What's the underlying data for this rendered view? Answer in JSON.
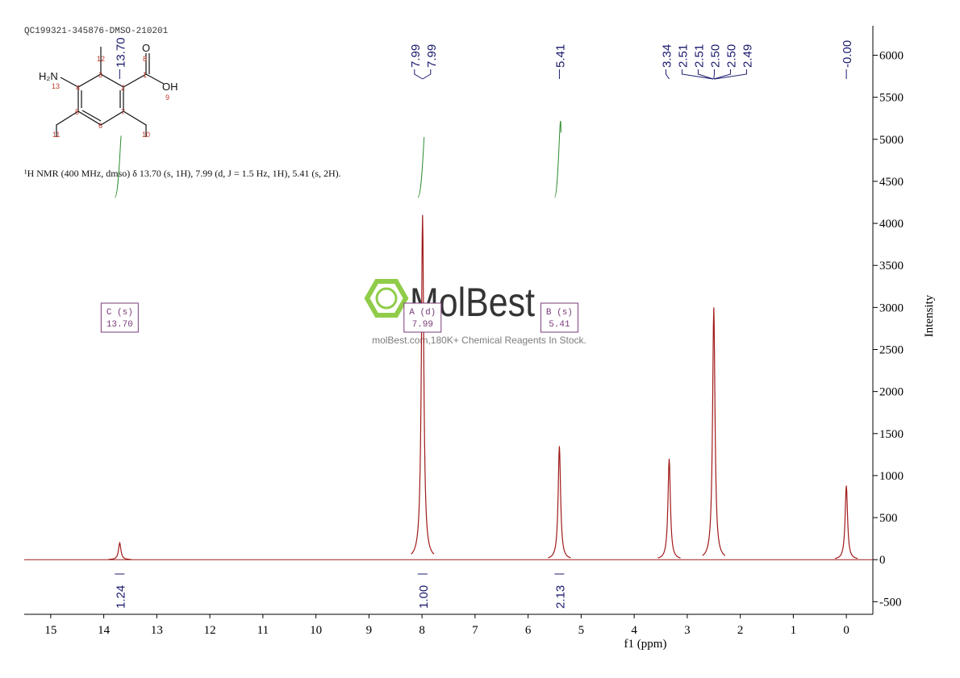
{
  "chart_data": {
    "type": "nmr",
    "sample_id": "QC199321-345876-DMSO-210201",
    "description": "¹H NMR (400 MHz, dmso) δ 13.70 (s, 1H), 7.99 (d, J = 1.5 Hz, 1H), 5.41 (s, 2H).",
    "x_label": "f1 (ppm)",
    "y_label": "Intensity",
    "xlim": [
      15.5,
      -0.5
    ],
    "ylim": [
      -650,
      6350
    ],
    "xticks": [
      15,
      14,
      13,
      12,
      11,
      10,
      9,
      8,
      7,
      6,
      5,
      4,
      3,
      2,
      1,
      0
    ],
    "yticks": [
      -500,
      0,
      500,
      1000,
      1500,
      2000,
      2500,
      3000,
      3500,
      4000,
      4500,
      5000,
      5500,
      6000
    ],
    "color": "#a01a1a",
    "peaks": {
      "x": [
        13.7,
        7.99,
        5.41,
        3.34,
        2.5,
        0.0
      ],
      "values": [
        200,
        4100,
        1350,
        1200,
        3000,
        880
      ]
    },
    "peak_labels": [
      {
        "value": 13.7,
        "label": "13.70"
      },
      {
        "value": 7.99,
        "label": "7.99"
      },
      {
        "value": 7.99,
        "label": "7.99"
      },
      {
        "value": 5.41,
        "label": "5.41"
      },
      {
        "value": 3.34,
        "label": "3.34"
      },
      {
        "value": 2.51,
        "label": "2.51"
      },
      {
        "value": 2.51,
        "label": "2.51"
      },
      {
        "value": 2.5,
        "label": "2.50"
      },
      {
        "value": 2.5,
        "label": "2.50"
      },
      {
        "value": 2.49,
        "label": "2.49"
      },
      {
        "value": 0.0,
        "label": "-0.00"
      }
    ],
    "integrals": {
      "x": [
        13.7,
        7.99,
        5.41
      ],
      "values": [
        1.24,
        1.0,
        2.13
      ],
      "value_labels": [
        "1.24",
        "1.00",
        "2.13"
      ]
    },
    "multiplets": [
      {
        "name": "C (s)",
        "shift": "13.70"
      },
      {
        "name": "A (d)",
        "shift": "7.99"
      },
      {
        "name": "B (s)",
        "shift": "5.41"
      }
    ]
  },
  "structure": {
    "atoms": [
      "H₂N",
      "13",
      "4",
      "3",
      "12",
      "2",
      "1",
      "8",
      "O",
      "OH",
      "9",
      "5",
      "6",
      "7",
      "11",
      "10"
    ]
  },
  "watermark": {
    "brand": "MolBest",
    "tagline": "molBest.com,180K+ Chemical Reagents In Stock."
  }
}
